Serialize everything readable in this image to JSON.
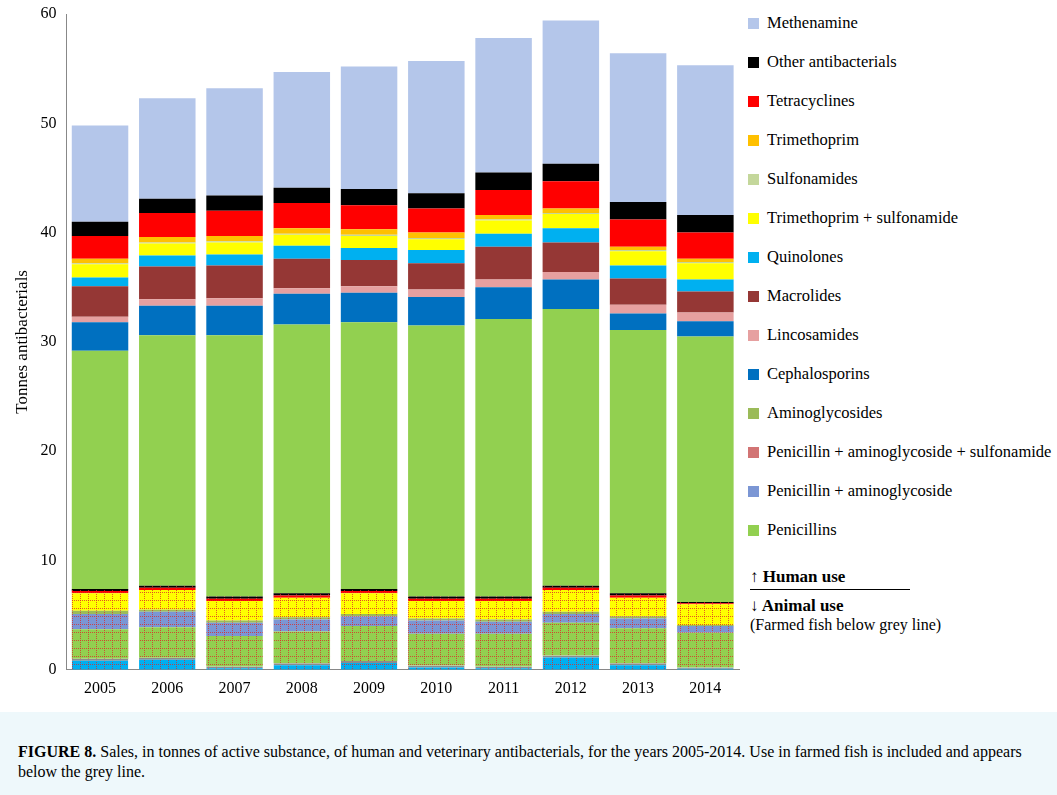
{
  "chart_data": {
    "type": "bar",
    "title": "FIGURE 8.",
    "subtitle": "Sales, in tonnes of active substance, of human and veterinary antibacterials, for the years 2005-2014. Use in farmed fish is included and appears below the grey line.",
    "y_label": "Tonnes antibacterials",
    "annotations": [
      "↑ Human use",
      "↓ Animal use",
      "(Farmed fish below grey line)"
    ],
    "categories": [
      "2005",
      "2006",
      "2007",
      "2008",
      "2009",
      "2010",
      "2011",
      "2012",
      "2013",
      "2014"
    ],
    "ylim": [
      0,
      60
    ],
    "yticks": [
      0,
      10,
      20,
      30,
      40,
      50,
      60
    ],
    "grid": false,
    "stacked": true,
    "legend": "right",
    "series": [
      {
        "name": "Quinolones",
        "color": "#00b0f0",
        "line_style": "dashed",
        "values": [
          1.0,
          1.1,
          0.3,
          0.6,
          0.8,
          0.4,
          0.3,
          1.3,
          0.6,
          0.2
        ]
      },
      {
        "name": "Penicillins",
        "color": "#92d050",
        "line_style": "dotted",
        "values": [
          2.7,
          2.8,
          2.8,
          2.9,
          3.2,
          2.9,
          3.0,
          3.0,
          3.2,
          3.2
        ]
      },
      {
        "name": "Penicillin + aminoglycoside",
        "color": "#7b96d4",
        "line_style": "dotted",
        "values": [
          1.4,
          1.4,
          1.2,
          1.1,
          0.9,
          1.2,
          1.1,
          0.8,
          0.9,
          0.6
        ]
      },
      {
        "name": "Aminoglycosides",
        "color": "#9bbb59",
        "line_style": "dotted",
        "values": [
          0.3,
          0.2,
          0.2,
          0.2,
          0.2,
          0.2,
          0.2,
          0.2,
          0.2,
          0.1
        ]
      },
      {
        "name": "Trimethoprim + sulfonamide",
        "color": "#ffff00",
        "line_style": "dotted",
        "values": [
          1.6,
          1.8,
          1.8,
          1.8,
          1.9,
          1.6,
          1.7,
          2.0,
          1.7,
          1.9
        ]
      },
      {
        "name": "Tetracyclines",
        "color": "#ff0000",
        "line_style": "dotted",
        "values": [
          0.2,
          0.2,
          0.2,
          0.2,
          0.2,
          0.2,
          0.2,
          0.2,
          0.2,
          0.1
        ]
      },
      {
        "name": "Other antibacterials",
        "color": "#000000",
        "line_style": "dotted",
        "values": [
          0.2,
          0.2,
          0.2,
          0.2,
          0.2,
          0.2,
          0.2,
          0.2,
          0.2,
          0.1
        ]
      },
      {
        "name": "Penicillins",
        "color": "#92d050",
        "values": [
          21.8,
          22.9,
          23.9,
          24.6,
          24.4,
          24.8,
          25.4,
          25.3,
          24.1,
          24.3
        ]
      },
      {
        "name": "Penicillin + aminoglycoside",
        "color": "#7b96d4",
        "values": [
          null,
          null,
          null,
          null,
          null,
          null,
          null,
          null,
          null,
          null
        ]
      },
      {
        "name": "Penicillin + aminoglycoside + sulfonamide",
        "color": "#d27474",
        "values": [
          null,
          null,
          null,
          null,
          null,
          null,
          null,
          null,
          null,
          null
        ]
      },
      {
        "name": "Aminoglycosides",
        "color": "#9bbb59",
        "values": [
          null,
          null,
          null,
          null,
          null,
          null,
          null,
          null,
          null,
          null
        ]
      },
      {
        "name": "Cephalosporins",
        "color": "#0070c0",
        "values": [
          2.6,
          2.7,
          2.7,
          2.8,
          2.7,
          2.6,
          2.9,
          2.7,
          1.5,
          1.4
        ]
      },
      {
        "name": "Lincosamides",
        "color": "#e6a0a0",
        "values": [
          0.5,
          0.6,
          0.7,
          0.5,
          0.6,
          0.7,
          0.7,
          0.7,
          0.8,
          0.8
        ]
      },
      {
        "name": "Macrolides",
        "color": "#953735",
        "values": [
          2.8,
          3.0,
          3.0,
          2.7,
          2.4,
          2.4,
          3.0,
          2.7,
          2.4,
          1.9
        ]
      },
      {
        "name": "Quinolones",
        "color": "#00b0f0",
        "values": [
          0.8,
          1.0,
          1.0,
          1.2,
          1.1,
          1.2,
          1.2,
          1.3,
          1.2,
          1.1
        ]
      },
      {
        "name": "Trimethoprim + sulfonamide",
        "color": "#ffff00",
        "values": [
          1.2,
          1.1,
          1.1,
          1.0,
          1.1,
          1.0,
          1.2,
          1.3,
          1.3,
          1.5
        ]
      },
      {
        "name": "Sulfonamides",
        "color": "#c4d79b",
        "values": [
          0.1,
          0.1,
          0.1,
          0.1,
          0.1,
          0.1,
          0.1,
          0.1,
          0.1,
          0.1
        ]
      },
      {
        "name": "Trimethoprim",
        "color": "#ffc000",
        "values": [
          0.4,
          0.5,
          0.5,
          0.5,
          0.5,
          0.5,
          0.4,
          0.4,
          0.3,
          0.3
        ]
      },
      {
        "name": "Tetracyclines",
        "color": "#ff0000",
        "values": [
          2.1,
          2.2,
          2.3,
          2.3,
          2.2,
          2.2,
          2.3,
          2.5,
          2.5,
          2.4
        ]
      },
      {
        "name": "Other antibacterials",
        "color": "#000000",
        "values": [
          1.3,
          1.3,
          1.4,
          1.4,
          1.5,
          1.4,
          1.6,
          1.6,
          1.6,
          1.6
        ]
      },
      {
        "name": "Methenamine",
        "color": "#b4c6ea",
        "values": [
          8.8,
          9.2,
          9.8,
          10.6,
          11.2,
          12.1,
          12.3,
          13.1,
          13.6,
          13.7
        ]
      }
    ]
  }
}
